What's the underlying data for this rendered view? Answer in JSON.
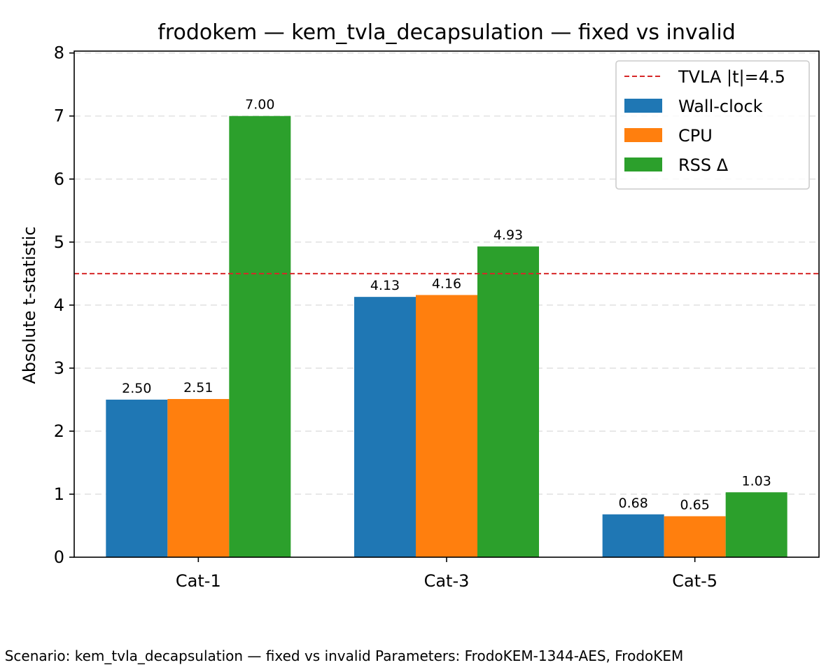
{
  "caption": ". Scenario: kem_tvla_decapsulation — fixed vs invalid Parameters: FrodoKEM-1344-AES, FrodoKEM",
  "chart_data": {
    "type": "bar",
    "title": "frodokem — kem_tvla_decapsulation — fixed vs invalid",
    "xlabel": "",
    "ylabel": "Absolute t-statistic",
    "ylim": [
      0,
      8.03
    ],
    "yticks": [
      0,
      1,
      2,
      3,
      4,
      5,
      6,
      7,
      8
    ],
    "grid": "y-dashed",
    "categories": [
      "Cat-1",
      "Cat-3",
      "Cat-5"
    ],
    "series": [
      {
        "name": "Wall-clock",
        "color": "#1f77b4",
        "values": [
          2.5,
          4.13,
          0.68
        ],
        "labels": [
          "2.50",
          "4.13",
          "0.68"
        ]
      },
      {
        "name": "CPU",
        "color": "#ff7f0e",
        "values": [
          2.51,
          4.16,
          0.65
        ],
        "labels": [
          "2.51",
          "4.16",
          "0.65"
        ]
      },
      {
        "name": "RSS Δ",
        "color": "#2ca02c",
        "values": [
          7.0,
          4.93,
          1.03
        ],
        "labels": [
          "7.00",
          "4.93",
          "1.03"
        ]
      }
    ],
    "threshold": {
      "label": "TVLA |t|=4.5",
      "value": 4.5,
      "color": "#d62728",
      "style": "dashed"
    },
    "legend": {
      "position": "upper right"
    }
  }
}
